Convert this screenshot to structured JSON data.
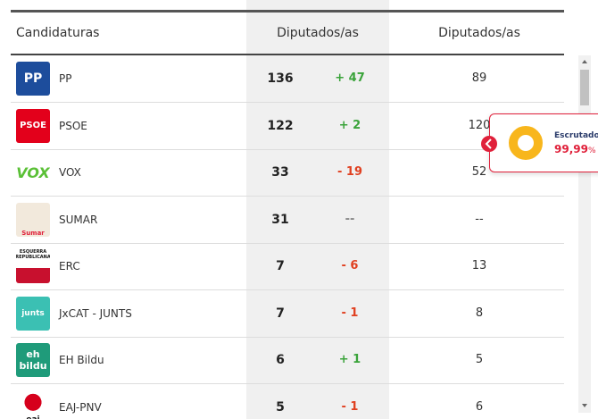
{
  "table": {
    "header": [
      "Candidaturas",
      "Diputados/as",
      "Diputados/as"
    ],
    "rows": [
      {
        "logo": "PP",
        "name": "PP",
        "seats": 136,
        "change": "+ 47",
        "previous": "89"
      },
      {
        "logo": "PSOE",
        "name": "PSOE",
        "seats": 122,
        "change": "+ 2",
        "previous": "120"
      },
      {
        "logo": "VOX",
        "name": "VOX",
        "seats": 33,
        "change": "- 19",
        "previous": "52"
      },
      {
        "logo": "Sumar",
        "name": "SUMAR",
        "seats": 31,
        "change": "--",
        "previous": "--"
      },
      {
        "logo": "ESQUERRA REPUBLICANA",
        "name": "ERC",
        "seats": 7,
        "change": "- 6",
        "previous": "13"
      },
      {
        "logo": "junts",
        "name": "JxCAT - JUNTS",
        "seats": 7,
        "change": "- 1",
        "previous": "8"
      },
      {
        "logo": "eh bildu",
        "name": "EH Bildu",
        "seats": 6,
        "change": "+ 1",
        "previous": "5"
      },
      {
        "logo": "eaj",
        "name": "EAJ-PNV",
        "seats": 5,
        "change": "- 1",
        "previous": "6"
      }
    ]
  },
  "popup": {
    "label": "Escrutado",
    "value": "99,99",
    "unit": "%"
  }
}
